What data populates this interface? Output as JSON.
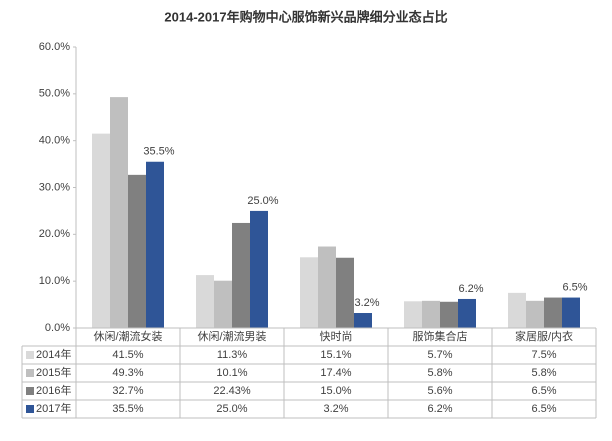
{
  "chart_data": {
    "type": "bar",
    "title": "2014-2017年购物中心服饰新兴品牌细分业态占比",
    "categories": [
      "休闲/潮流女装",
      "休闲/潮流男装",
      "快时尚",
      "服饰集合店",
      "家居服/内衣"
    ],
    "series": [
      {
        "name": "2014年",
        "color": "#d9d9d9",
        "values": [
          41.5,
          11.3,
          15.1,
          5.7,
          7.5
        ],
        "value_labels": [
          "41.5%",
          "11.3%",
          "15.1%",
          "5.7%",
          "7.5%"
        ]
      },
      {
        "name": "2015年",
        "color": "#bfbfbf",
        "values": [
          49.3,
          10.1,
          17.4,
          5.8,
          5.8
        ],
        "value_labels": [
          "49.3%",
          "10.1%",
          "17.4%",
          "5.8%",
          "5.8%"
        ]
      },
      {
        "name": "2016年",
        "color": "#808080",
        "values": [
          32.7,
          22.43,
          15.0,
          5.6,
          6.5
        ],
        "value_labels": [
          "32.7%",
          "22.43%",
          "15.0%",
          "5.6%",
          "6.5%"
        ]
      },
      {
        "name": "2017年",
        "color": "#2f5597",
        "values": [
          35.5,
          25.0,
          3.2,
          6.2,
          6.5
        ],
        "value_labels": [
          "35.5%",
          "25.0%",
          "3.2%",
          "6.2%",
          "6.5%"
        ],
        "show_labels": true
      }
    ],
    "ylim": [
      0,
      60
    ],
    "yticks": [
      {
        "value": 0,
        "label": "0.0%"
      },
      {
        "value": 10,
        "label": "10.0%"
      },
      {
        "value": 20,
        "label": "20.0%"
      },
      {
        "value": 30,
        "label": "30.0%"
      },
      {
        "value": 40,
        "label": "40.0%"
      },
      {
        "value": 50,
        "label": "50.0%"
      },
      {
        "value": 60,
        "label": "60.0%"
      }
    ],
    "grid": false,
    "data_table": true
  }
}
